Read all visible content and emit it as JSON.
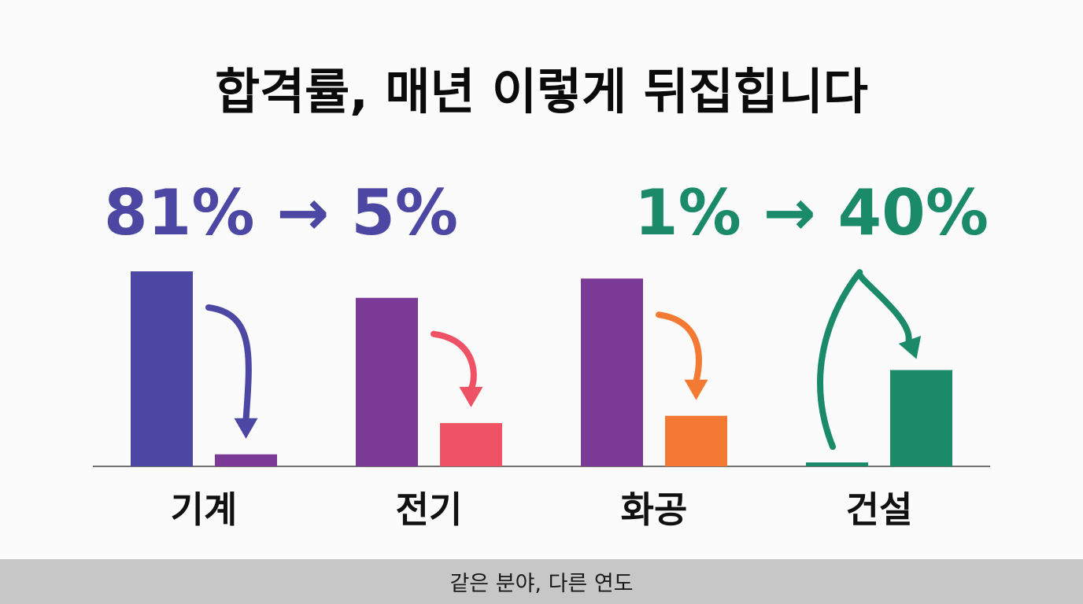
{
  "title": "합격률, 매년 이렇게 뒤집힙니다",
  "footer_caption": "같은 분야, 다른 연도",
  "highlights": [
    {
      "text": "81% → 5%",
      "color": "#4b47a3"
    },
    {
      "text": "1% → 40%",
      "color": "#1a8a68"
    }
  ],
  "chart_data": {
    "type": "bar",
    "title": "합격률, 매년 이렇게 뒤집힙니다",
    "unit": "%",
    "ylim": [
      0,
      100
    ],
    "grid": false,
    "legend": "none",
    "categories": [
      "기계",
      "전기",
      "화공",
      "건설"
    ],
    "groups": [
      {
        "category": "기계",
        "before": 81,
        "after": 5,
        "before_color": "#4b47a3",
        "after_color": "#7b3a96",
        "arrow_color": "#4b47a3",
        "arrow_direction": "down"
      },
      {
        "category": "전기",
        "before": 70,
        "after": 18,
        "before_color": "#7b3a96",
        "after_color": "#ee5264",
        "arrow_color": "#ee5264",
        "arrow_direction": "down"
      },
      {
        "category": "화공",
        "before": 78,
        "after": 21,
        "before_color": "#7b3a96",
        "after_color": "#f47a33",
        "arrow_color": "#f47a33",
        "arrow_direction": "down"
      },
      {
        "category": "건설",
        "before": 1,
        "after": 40,
        "before_color": "#1a8a68",
        "after_color": "#1a8a68",
        "arrow_color": "#1a8a68",
        "arrow_direction": "up"
      }
    ]
  }
}
